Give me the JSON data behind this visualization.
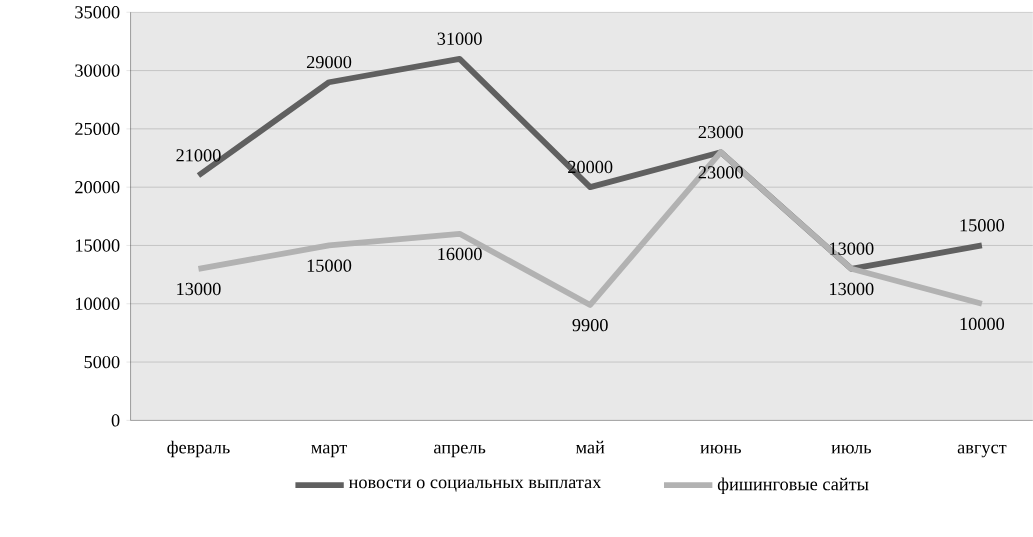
{
  "chart_data": {
    "type": "line",
    "categories": [
      "февраль",
      "март",
      "апрель",
      "май",
      "июнь",
      "июль",
      "август"
    ],
    "series": [
      {
        "name": "новости о социальных выплатах",
        "color": "#606060",
        "values": [
          21000,
          29000,
          31000,
          20000,
          23000,
          13000,
          15000
        ]
      },
      {
        "name": "фишинговые сайты",
        "color": "#b2b2b2",
        "values": [
          13000,
          15000,
          16000,
          9900,
          23000,
          13000,
          10000
        ]
      }
    ],
    "ylim": [
      0,
      35000
    ],
    "yticks": [
      0,
      5000,
      10000,
      15000,
      20000,
      25000,
      30000,
      35000
    ],
    "grid": "y",
    "legend": "bottom",
    "data_labels": true,
    "line_style": "solid"
  }
}
